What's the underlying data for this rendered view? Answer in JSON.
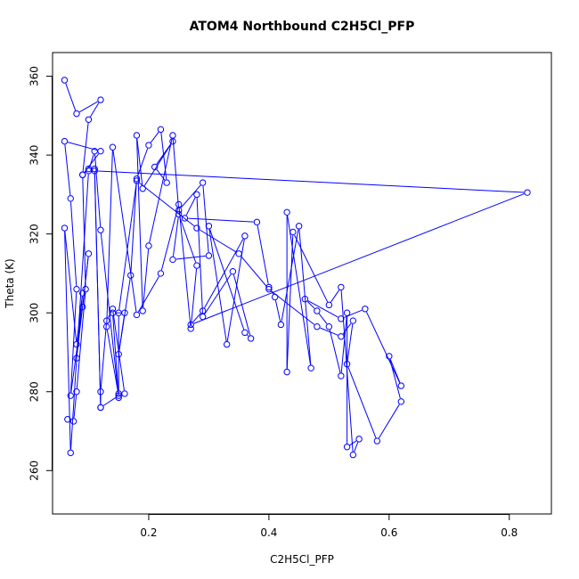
{
  "chart_data": {
    "type": "line",
    "title": "ATOM4 Northbound C2H5Cl_PFP",
    "xlabel": "C2H5Cl_PFP",
    "ylabel": "Theta (K)",
    "xlim": [
      0.04,
      0.87
    ],
    "ylim": [
      249,
      366
    ],
    "x_ticks": [
      0.2,
      0.4,
      0.6,
      0.8
    ],
    "x_tick_labels": [
      "0.2",
      "0.4",
      "0.6",
      "0.8"
    ],
    "y_ticks": [
      260,
      280,
      300,
      320,
      340,
      360
    ],
    "y_tick_labels": [
      "260",
      "280",
      "300",
      "320",
      "340",
      "360"
    ],
    "grid": false,
    "series": [
      {
        "color": "#0000ff",
        "marker": "open-circle",
        "line": true,
        "x": [
          0.06,
          0.08,
          0.12,
          0.1,
          0.09,
          0.12,
          0.06,
          0.07,
          0.08,
          0.07,
          0.09,
          0.1,
          0.08,
          0.09,
          0.08,
          0.06,
          0.07,
          0.1,
          0.11,
          0.12,
          0.15,
          0.14,
          0.16,
          0.15,
          0.17,
          0.18,
          0.2,
          0.22,
          0.23,
          0.21,
          0.24,
          0.19,
          0.18,
          0.19,
          0.2,
          0.24,
          0.25,
          0.29,
          0.3,
          0.24,
          0.25,
          0.28,
          0.27,
          0.25,
          0.22,
          0.18,
          0.14,
          0.13,
          0.15,
          0.12,
          0.11,
          0.83,
          0.27,
          0.29,
          0.36,
          0.33,
          0.3,
          0.36,
          0.37,
          0.34,
          0.29,
          0.28,
          0.26,
          0.38,
          0.4,
          0.41,
          0.42,
          0.45,
          0.47,
          0.43,
          0.43,
          0.44,
          0.5,
          0.52,
          0.54,
          0.55,
          0.53,
          0.53,
          0.52,
          0.5,
          0.48,
          0.46,
          0.52,
          0.56,
          0.62,
          0.6,
          0.62,
          0.58,
          0.53,
          0.54,
          0.52,
          0.48,
          0.4,
          0.35,
          0.28,
          0.18,
          0.15,
          0.15,
          0.16,
          0.14,
          0.13,
          0.12,
          0.12,
          0.11,
          0.1,
          0.09,
          0.095,
          0.08,
          0.075,
          0.065
        ],
        "y": [
          359,
          350.5,
          354,
          349,
          335,
          341,
          343.5,
          329,
          306,
          279,
          301.5,
          315,
          288.5,
          305,
          292,
          321.5,
          264.5,
          336,
          341,
          321,
          278.5,
          300,
          300,
          289.5,
          309.5,
          334,
          342.5,
          346.5,
          333,
          337,
          343.5,
          331.5,
          345,
          300.5,
          317,
          345,
          326,
          333,
          314.5,
          313.5,
          325,
          312,
          296,
          327.5,
          310,
          299.5,
          342,
          296.5,
          279,
          276,
          336,
          330.5,
          297,
          300.5,
          319.5,
          292,
          322,
          295,
          293.5,
          310.5,
          299,
          330,
          324,
          323,
          306.5,
          304,
          297,
          322,
          286,
          325.5,
          285,
          320.5,
          302,
          306.5,
          264,
          268,
          266,
          300,
          284,
          296.5,
          300.5,
          303.5,
          298.5,
          301,
          281.5,
          289,
          277.5,
          267.5,
          287,
          298,
          294,
          296.5,
          306,
          315,
          321.5,
          333.5,
          300,
          279.5,
          279.5,
          301,
          298,
          280,
          276,
          336.5,
          336.5,
          335,
          306,
          280,
          272.5,
          273
        ]
      }
    ]
  }
}
